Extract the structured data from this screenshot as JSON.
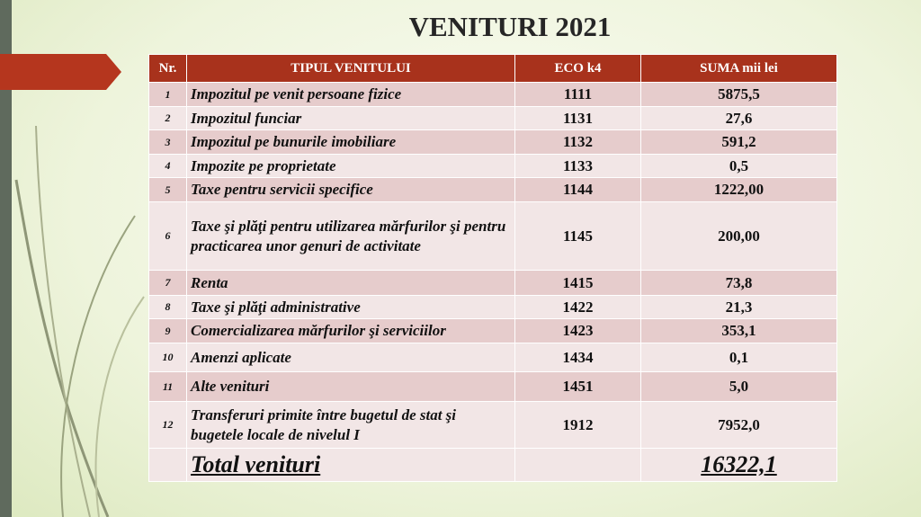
{
  "header": {
    "title": "VENITURI 2021"
  },
  "table": {
    "columns": [
      "Nr.",
      "TIPUL VENITULUI",
      "ECO k4",
      "SUMA  mii lei"
    ],
    "rows": [
      [
        "1",
        "Impozitul pe venit persoane fizice",
        "1111",
        "5875,5"
      ],
      [
        "2",
        "Impozitul funciar",
        "1131",
        "27,6"
      ],
      [
        "3",
        "Impozitul pe bunurile imobiliare",
        "1132",
        "591,2"
      ],
      [
        "4",
        "Impozite pe proprietate",
        "1133",
        "0,5"
      ],
      [
        "5",
        "Taxe pentru servicii specifice",
        "1144",
        "1222,00"
      ],
      [
        "6",
        "Taxe şi plăţi pentru utilizarea mărfurilor şi pentru practicarea unor genuri de activitate",
        "1145",
        "200,00"
      ],
      [
        "7",
        "Renta",
        "1415",
        "73,8"
      ],
      [
        "8",
        "Taxe şi plăţi administrative",
        "1422",
        "21,3"
      ],
      [
        "9",
        "Comercializarea mărfurilor şi serviciilor",
        "1423",
        "353,1"
      ],
      [
        "10",
        "Amenzi aplicate",
        "1434",
        "0,1"
      ],
      [
        "11",
        "Alte venituri",
        "1451",
        "5,0"
      ],
      [
        "12",
        "Transferuri primite între bugetul de stat şi bugetele locale de nivelul I",
        "1912",
        "7952,0"
      ]
    ],
    "total": [
      "Total venituri",
      "16322,1"
    ]
  }
}
